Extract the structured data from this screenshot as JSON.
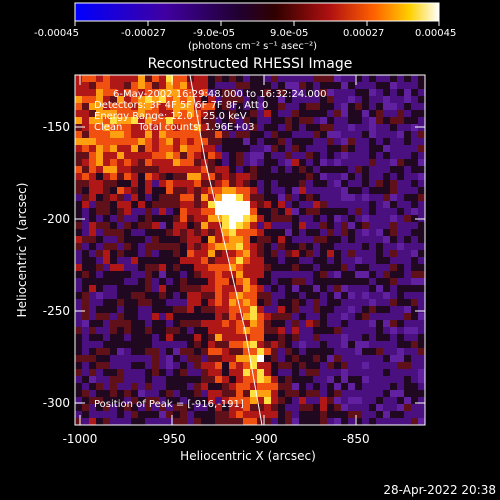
{
  "colorbar": {
    "ticks": [
      "-0.00045",
      "-0.00027",
      "-9.0e-05",
      "9.0e-05",
      "0.00027",
      "0.00045"
    ],
    "units": "(photons cm⁻² s⁻¹ asec⁻²)"
  },
  "title": "Reconstructed RHESSI Image",
  "info": {
    "time": "6-May-2002 16:29:48.000 to 16:32:24.000",
    "detectors": "Detectors: 3F 4F 5F 6F 7F 8F, Att 0",
    "energy": "Energy Range: 12.0 - 25.0 keV",
    "clean": "Clean     Total counts: 1.96E+03"
  },
  "peak_label": "Position of Peak = [-916,-191]",
  "axes": {
    "xlabel": "Heliocentric X (arcsec)",
    "ylabel": "Heliocentric Y (arcsec)",
    "xticks": [
      "-1000",
      "-950",
      "-900",
      "-850"
    ],
    "yticks": [
      "-150",
      "-200",
      "-250",
      "-300"
    ],
    "xrange": [
      -1000,
      -810
    ],
    "yrange": [
      -313,
      -123
    ]
  },
  "footer": "28-Apr-2022 20:38"
}
